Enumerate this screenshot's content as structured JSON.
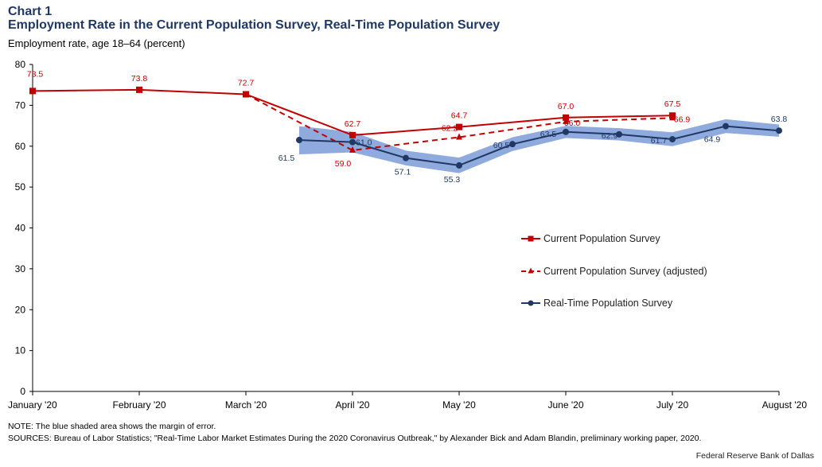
{
  "header": {
    "chart_number": "Chart 1",
    "title": "Employment Rate in the Current Population Survey, Real-Time Population Survey",
    "y_axis_label": "Employment rate, age 18–64 (percent)"
  },
  "footer": {
    "note": "NOTE: The blue shaded area shows the margin of error.",
    "sources": "SOURCES: Bureau of Labor Statistics; \"Real-Time Labor Market Estimates During the 2020 Coronavirus Outbreak,\" by Alexander Bick and Adam Blandin, preliminary working paper, 2020.",
    "credit": "Federal Reserve Bank of Dallas"
  },
  "colors": {
    "cps": "#c00000",
    "rps": "#1f3864",
    "band": "#8faadc"
  },
  "chart_data": {
    "type": "line",
    "ylim": [
      0,
      80
    ],
    "yticks": [
      0,
      10,
      20,
      30,
      40,
      50,
      60,
      70,
      80
    ],
    "xlim": [
      0,
      7
    ],
    "x_ticks": [
      {
        "x": 0,
        "label": "January '20"
      },
      {
        "x": 1,
        "label": "February '20"
      },
      {
        "x": 2,
        "label": "March '20"
      },
      {
        "x": 3,
        "label": "April '20"
      },
      {
        "x": 4,
        "label": "May '20"
      },
      {
        "x": 5,
        "label": "June '20"
      },
      {
        "x": 6,
        "label": "July '20"
      },
      {
        "x": 7,
        "label": "August '20"
      }
    ],
    "legend_position": "center-right",
    "series": [
      {
        "name": "Current Population Survey",
        "style": "solid",
        "marker": "square",
        "points": [
          {
            "x": 0,
            "y": 73.5
          },
          {
            "x": 1,
            "y": 73.8
          },
          {
            "x": 2,
            "y": 72.7
          },
          {
            "x": 3,
            "y": 62.7
          },
          {
            "x": 4,
            "y": 64.7
          },
          {
            "x": 5,
            "y": 67.0
          },
          {
            "x": 6,
            "y": 67.5
          }
        ]
      },
      {
        "name": "Current Population Survey (adjusted)",
        "style": "dashed",
        "marker": "triangle",
        "points": [
          {
            "x": 2,
            "y": 72.7
          },
          {
            "x": 3,
            "y": 59.0
          },
          {
            "x": 4,
            "y": 62.2
          },
          {
            "x": 5,
            "y": 66.0
          },
          {
            "x": 6,
            "y": 66.9
          }
        ]
      },
      {
        "name": "Real-Time Population Survey",
        "style": "solid",
        "marker": "circle",
        "points": [
          {
            "x": 2.5,
            "y": 61.5
          },
          {
            "x": 3,
            "y": 61.0
          },
          {
            "x": 3.5,
            "y": 57.1
          },
          {
            "x": 4,
            "y": 55.3
          },
          {
            "x": 4.5,
            "y": 60.5
          },
          {
            "x": 5,
            "y": 63.5
          },
          {
            "x": 5.5,
            "y": 62.9
          },
          {
            "x": 6,
            "y": 61.7
          },
          {
            "x": 6.5,
            "y": 64.9
          },
          {
            "x": 7,
            "y": 63.8
          }
        ],
        "margin_of_error": [
          {
            "x": 2.5,
            "low": 58.0,
            "high": 64.9
          },
          {
            "x": 3,
            "low": 58.5,
            "high": 63.5
          },
          {
            "x": 3.5,
            "low": 55.3,
            "high": 58.9
          },
          {
            "x": 4,
            "low": 53.4,
            "high": 57.2
          },
          {
            "x": 4.5,
            "low": 58.8,
            "high": 62.2
          },
          {
            "x": 5,
            "low": 62.0,
            "high": 65.0
          },
          {
            "x": 5.5,
            "low": 61.4,
            "high": 64.4
          },
          {
            "x": 6,
            "low": 60.0,
            "high": 63.4
          },
          {
            "x": 6.5,
            "low": 63.2,
            "high": 66.6
          },
          {
            "x": 7,
            "low": 62.3,
            "high": 65.3
          }
        ]
      }
    ]
  }
}
